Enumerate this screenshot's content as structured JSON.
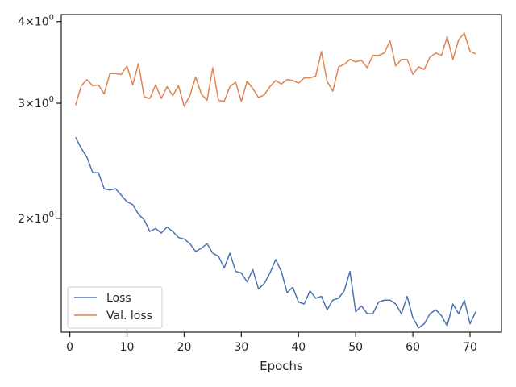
{
  "chart_data": {
    "type": "line",
    "xlabel": "Epochs",
    "ylabel": "",
    "y_scale": "log",
    "xlim": [
      -1.5,
      75.5
    ],
    "ylim": [
      1.34,
      4.1
    ],
    "x_ticks": [
      0,
      10,
      20,
      30,
      40,
      50,
      60,
      70
    ],
    "x_tick_labels": [
      "0",
      "10",
      "20",
      "30",
      "40",
      "50",
      "60",
      "70"
    ],
    "y_ticks": [
      2,
      3,
      4
    ],
    "y_tick_labels": [
      {
        "base": "2",
        "mult": "×",
        "exp_base": "10",
        "exp": "0"
      },
      {
        "base": "3",
        "mult": "×",
        "exp_base": "10",
        "exp": "0"
      },
      {
        "base": "4",
        "mult": "×",
        "exp_base": "10",
        "exp": "0"
      }
    ],
    "grid": false,
    "legend_position": "lower-left",
    "x": [
      1,
      2,
      3,
      4,
      5,
      6,
      7,
      8,
      9,
      10,
      11,
      12,
      13,
      14,
      15,
      16,
      17,
      18,
      19,
      20,
      21,
      22,
      23,
      24,
      25,
      26,
      27,
      28,
      29,
      30,
      31,
      32,
      33,
      34,
      35,
      36,
      37,
      38,
      39,
      40,
      41,
      42,
      43,
      44,
      45,
      46,
      47,
      48,
      49,
      50,
      51,
      52,
      53,
      54,
      55,
      56,
      57,
      58,
      59,
      60,
      61,
      62,
      63,
      64,
      65,
      66,
      67,
      68,
      69,
      70,
      71
    ],
    "series": [
      {
        "name": "Loss",
        "color": "#4c72b0",
        "values": [
          2.66,
          2.56,
          2.48,
          2.35,
          2.35,
          2.22,
          2.21,
          2.22,
          2.17,
          2.12,
          2.1,
          2.03,
          1.99,
          1.91,
          1.93,
          1.9,
          1.94,
          1.91,
          1.87,
          1.86,
          1.83,
          1.78,
          1.8,
          1.83,
          1.77,
          1.75,
          1.68,
          1.77,
          1.66,
          1.65,
          1.6,
          1.67,
          1.56,
          1.59,
          1.65,
          1.73,
          1.66,
          1.54,
          1.57,
          1.49,
          1.48,
          1.55,
          1.51,
          1.52,
          1.45,
          1.5,
          1.51,
          1.55,
          1.66,
          1.44,
          1.47,
          1.43,
          1.43,
          1.49,
          1.5,
          1.5,
          1.48,
          1.43,
          1.52,
          1.41,
          1.36,
          1.38,
          1.43,
          1.45,
          1.42,
          1.37,
          1.48,
          1.43,
          1.5,
          1.38,
          1.44
        ]
      },
      {
        "name": "Val. loss",
        "color": "#dd8452",
        "values": [
          2.98,
          3.19,
          3.26,
          3.19,
          3.2,
          3.1,
          3.33,
          3.33,
          3.32,
          3.42,
          3.2,
          3.45,
          3.07,
          3.05,
          3.2,
          3.05,
          3.18,
          3.08,
          3.19,
          2.97,
          3.08,
          3.29,
          3.1,
          3.03,
          3.4,
          3.03,
          3.02,
          3.18,
          3.23,
          3.02,
          3.24,
          3.16,
          3.06,
          3.09,
          3.18,
          3.25,
          3.21,
          3.26,
          3.25,
          3.22,
          3.28,
          3.28,
          3.3,
          3.6,
          3.24,
          3.13,
          3.41,
          3.44,
          3.5,
          3.47,
          3.49,
          3.4,
          3.55,
          3.55,
          3.58,
          3.74,
          3.42,
          3.5,
          3.5,
          3.32,
          3.41,
          3.38,
          3.53,
          3.58,
          3.55,
          3.79,
          3.5,
          3.75,
          3.84,
          3.6,
          3.57
        ]
      }
    ]
  }
}
